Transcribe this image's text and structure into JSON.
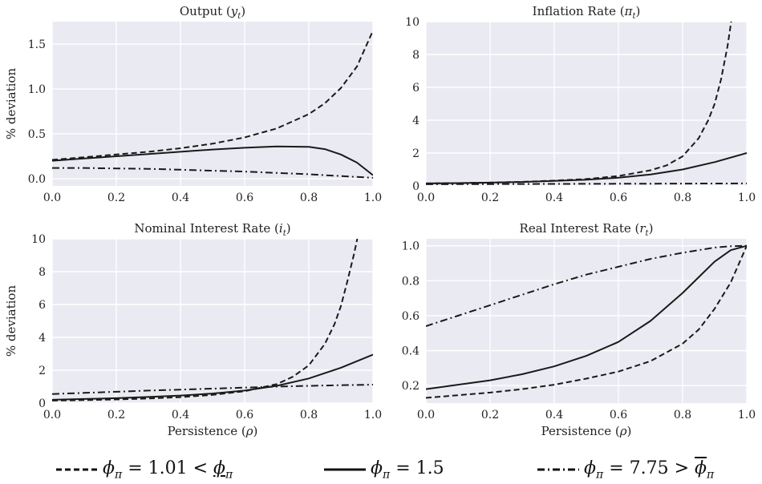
{
  "chart_data": [
    {
      "type": "line",
      "title": "Output (yₜ)",
      "title_parts": {
        "main": "Output (",
        "sym": "y",
        "sub": "t",
        "end": ")"
      },
      "ylabel": "% deviation",
      "xlabel": "",
      "xlim": [
        0,
        1
      ],
      "ylim": [
        -0.08,
        1.75
      ],
      "xticks": [
        "0.0",
        "0.2",
        "0.4",
        "0.6",
        "0.8",
        "1.0"
      ],
      "xtick_values": [
        0,
        0.2,
        0.4,
        0.6,
        0.8,
        1.0
      ],
      "yticks": [
        "0.0",
        "0.5",
        "1.0",
        "1.5"
      ],
      "ytick_values": [
        0,
        0.5,
        1.0,
        1.5
      ],
      "grid": true,
      "x": [
        0,
        0.1,
        0.2,
        0.3,
        0.4,
        0.5,
        0.6,
        0.7,
        0.8,
        0.85,
        0.9,
        0.95,
        1.0
      ],
      "series": [
        {
          "style": "dashed",
          "values": [
            0.21,
            0.24,
            0.27,
            0.3,
            0.34,
            0.39,
            0.46,
            0.56,
            0.72,
            0.84,
            1.01,
            1.25,
            1.65
          ]
        },
        {
          "style": "solid",
          "values": [
            0.2,
            0.225,
            0.25,
            0.275,
            0.3,
            0.325,
            0.345,
            0.36,
            0.355,
            0.33,
            0.27,
            0.18,
            0.04
          ]
        },
        {
          "style": "dashdot",
          "values": [
            0.12,
            0.12,
            0.115,
            0.11,
            0.1,
            0.09,
            0.08,
            0.065,
            0.05,
            0.04,
            0.03,
            0.02,
            0.01
          ]
        }
      ]
    },
    {
      "type": "line",
      "title": "Inflation Rate (πₜ)",
      "title_parts": {
        "main": "Inflation Rate (",
        "sym": "π",
        "sub": "t",
        "end": ")"
      },
      "ylabel": "",
      "xlabel": "",
      "xlim": [
        0,
        1
      ],
      "ylim": [
        0,
        10
      ],
      "xticks": [
        "0.0",
        "0.2",
        "0.4",
        "0.6",
        "0.8",
        "1.0"
      ],
      "xtick_values": [
        0,
        0.2,
        0.4,
        0.6,
        0.8,
        1.0
      ],
      "yticks": [
        "0",
        "2",
        "4",
        "6",
        "8",
        "10"
      ],
      "ytick_values": [
        0,
        2,
        4,
        6,
        8,
        10
      ],
      "grid": true,
      "x": [
        0,
        0.1,
        0.2,
        0.3,
        0.4,
        0.5,
        0.6,
        0.7,
        0.75,
        0.8,
        0.85,
        0.88,
        0.9,
        0.92,
        0.94,
        0.95,
        0.955
      ],
      "series": [
        {
          "style": "dashed",
          "values": [
            0.15,
            0.17,
            0.2,
            0.25,
            0.32,
            0.42,
            0.6,
            0.95,
            1.25,
            1.8,
            2.9,
            4.0,
            5.0,
            6.5,
            8.5,
            9.8,
            10.5
          ]
        },
        {
          "style": "solid",
          "x": [
            0,
            0.1,
            0.2,
            0.3,
            0.4,
            0.5,
            0.6,
            0.7,
            0.8,
            0.9,
            1.0
          ],
          "values": [
            0.15,
            0.17,
            0.2,
            0.24,
            0.3,
            0.38,
            0.5,
            0.7,
            1.0,
            1.45,
            2.0
          ]
        },
        {
          "style": "dashdot",
          "x": [
            0,
            0.2,
            0.4,
            0.6,
            0.8,
            1.0
          ],
          "values": [
            0.1,
            0.11,
            0.12,
            0.13,
            0.14,
            0.15
          ]
        }
      ]
    },
    {
      "type": "line",
      "title": "Nominal Interest Rate (iₜ)",
      "title_parts": {
        "main": "Nominal Interest Rate (",
        "sym": "i",
        "sub": "t",
        "end": ")"
      },
      "ylabel": "% deviation",
      "xlabel": "Persistence (ρ)",
      "xlabel_parts": {
        "main": "Persistence (",
        "sym": "ρ",
        "end": ")"
      },
      "xlim": [
        0,
        1
      ],
      "ylim": [
        0,
        10
      ],
      "xticks": [
        "0.0",
        "0.2",
        "0.4",
        "0.6",
        "0.8",
        "1.0"
      ],
      "xtick_values": [
        0,
        0.2,
        0.4,
        0.6,
        0.8,
        1.0
      ],
      "yticks": [
        "0",
        "2",
        "4",
        "6",
        "8",
        "10"
      ],
      "ytick_values": [
        0,
        2,
        4,
        6,
        8,
        10
      ],
      "grid": true,
      "x": [
        0,
        0.1,
        0.2,
        0.3,
        0.4,
        0.5,
        0.6,
        0.7,
        0.75,
        0.8,
        0.85,
        0.88,
        0.9,
        0.92,
        0.94,
        0.95,
        0.955
      ],
      "series": [
        {
          "style": "dashed",
          "values": [
            0.15,
            0.18,
            0.22,
            0.28,
            0.36,
            0.5,
            0.72,
            1.15,
            1.6,
            2.3,
            3.6,
            4.8,
            5.9,
            7.4,
            9.0,
            9.9,
            10.5
          ]
        },
        {
          "style": "solid",
          "x": [
            0,
            0.1,
            0.2,
            0.3,
            0.4,
            0.5,
            0.6,
            0.7,
            0.8,
            0.9,
            1.0
          ],
          "values": [
            0.2,
            0.25,
            0.3,
            0.37,
            0.46,
            0.58,
            0.76,
            1.05,
            1.5,
            2.15,
            2.95
          ]
        },
        {
          "style": "dashdot",
          "x": [
            0,
            0.1,
            0.2,
            0.3,
            0.4,
            0.5,
            0.6,
            0.7,
            0.8,
            0.9,
            1.0
          ],
          "values": [
            0.55,
            0.62,
            0.69,
            0.76,
            0.82,
            0.88,
            0.94,
            1.0,
            1.05,
            1.09,
            1.12
          ]
        }
      ]
    },
    {
      "type": "line",
      "title": "Real Interest Rate (rₜ)",
      "title_parts": {
        "main": "Real Interest Rate (",
        "sym": "r",
        "sub": "t",
        "end": ")"
      },
      "ylabel": "",
      "xlabel": "Persistence (ρ)",
      "xlabel_parts": {
        "main": "Persistence (",
        "sym": "ρ",
        "end": ")"
      },
      "xlim": [
        0,
        1
      ],
      "ylim": [
        0.1,
        1.04
      ],
      "xticks": [
        "0.0",
        "0.2",
        "0.4",
        "0.6",
        "0.8",
        "1.0"
      ],
      "xtick_values": [
        0,
        0.2,
        0.4,
        0.6,
        0.8,
        1.0
      ],
      "yticks": [
        "0.2",
        "0.4",
        "0.6",
        "0.8",
        "1.0"
      ],
      "ytick_values": [
        0.2,
        0.4,
        0.6,
        0.8,
        1.0
      ],
      "grid": true,
      "x": [
        0,
        0.1,
        0.2,
        0.3,
        0.4,
        0.5,
        0.6,
        0.7,
        0.8,
        0.85,
        0.9,
        0.95,
        1.0
      ],
      "series": [
        {
          "style": "dashed",
          "values": [
            0.13,
            0.145,
            0.16,
            0.18,
            0.205,
            0.24,
            0.28,
            0.34,
            0.44,
            0.52,
            0.64,
            0.79,
            1.0
          ]
        },
        {
          "style": "solid",
          "values": [
            0.18,
            0.205,
            0.23,
            0.265,
            0.31,
            0.37,
            0.45,
            0.57,
            0.73,
            0.82,
            0.91,
            0.975,
            1.0
          ]
        },
        {
          "style": "dashdot",
          "values": [
            0.54,
            0.6,
            0.66,
            0.72,
            0.78,
            0.835,
            0.88,
            0.925,
            0.96,
            0.975,
            0.99,
            0.998,
            1.0
          ]
        }
      ]
    }
  ],
  "legend": [
    {
      "style": "dashed",
      "label": "ϕπ = 1.01 < ϕπ",
      "lhs": "ϕ",
      "lhs_sub": "π",
      "rel": " = 1.01 < ",
      "rhs": "ϕ",
      "rhs_sub": "π",
      "rhs_mark": "underline"
    },
    {
      "style": "solid",
      "label": "ϕπ = 1.5",
      "lhs": "ϕ",
      "lhs_sub": "π",
      "rel": " = 1.5",
      "rhs": "",
      "rhs_sub": "",
      "rhs_mark": "none"
    },
    {
      "style": "dashdot",
      "label": "ϕπ = 7.75 > ϕπ",
      "lhs": "ϕ",
      "lhs_sub": "π",
      "rel": " = 7.75 > ",
      "rhs": "ϕ",
      "rhs_sub": "π",
      "rhs_mark": "overline"
    }
  ],
  "colors": {
    "panel_bg": "#eaeaf2",
    "grid": "#ffffff",
    "line": "#1a1a1a"
  }
}
